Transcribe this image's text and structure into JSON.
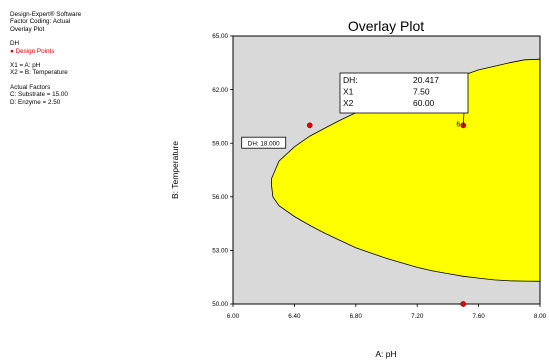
{
  "info": {
    "software": "Design-Expert® Software",
    "coding": "Factor Coding: Actual",
    "plot_name": "Overlay Plot",
    "response": "DH",
    "design_points": "Design Points",
    "x1_assign": "X1 = A: pH",
    "x2_assign": "X2 = B: Temperature",
    "actual_factors_header": "Actual Factors",
    "factor_c": "C: Substrate = 15.00",
    "factor_d": "D: Enzyme = 2.50"
  },
  "chart_data": {
    "type": "contour",
    "title": "Overlay Plot",
    "xlabel": "A: pH",
    "ylabel": "B: Temperature",
    "xlim": [
      6.0,
      8.0
    ],
    "ylim": [
      50.0,
      65.0
    ],
    "xticks": [
      "6.00",
      "6.40",
      "6.80",
      "7.20",
      "7.60",
      "8.00"
    ],
    "yticks": [
      "50.00",
      "53.00",
      "56.00",
      "59.00",
      "62.00",
      "65.00"
    ],
    "xtick_values": [
      6.0,
      6.4,
      6.8,
      7.2,
      7.6,
      8.0
    ],
    "ytick_values": [
      50.0,
      53.0,
      56.0,
      59.0,
      62.0,
      65.0
    ],
    "feasible_region": {
      "fill": "#ffff00",
      "outside_fill": "#d9d9d9",
      "boundary": [
        [
          8.0,
          63.7
        ],
        [
          7.9,
          63.67
        ],
        [
          7.8,
          63.5
        ],
        [
          7.7,
          63.3
        ],
        [
          7.6,
          63.1
        ],
        [
          7.5,
          62.8
        ],
        [
          7.4,
          62.55
        ],
        [
          7.3,
          62.3
        ],
        [
          7.2,
          62.0
        ],
        [
          7.1,
          61.7
        ],
        [
          7.0,
          61.4
        ],
        [
          6.9,
          61.05
        ],
        [
          6.8,
          60.7
        ],
        [
          6.7,
          60.3
        ],
        [
          6.6,
          59.85
        ],
        [
          6.5,
          59.4
        ],
        [
          6.4,
          58.8
        ],
        [
          6.3,
          58.0
        ],
        [
          6.25,
          57.0
        ],
        [
          6.25,
          56.7
        ],
        [
          6.26,
          56.0
        ],
        [
          6.3,
          55.5
        ],
        [
          6.4,
          54.9
        ],
        [
          6.5,
          54.4
        ],
        [
          6.6,
          53.95
        ],
        [
          6.7,
          53.55
        ],
        [
          6.8,
          53.15
        ],
        [
          6.9,
          52.85
        ],
        [
          7.0,
          52.55
        ],
        [
          7.1,
          52.3
        ],
        [
          7.2,
          52.05
        ],
        [
          7.3,
          51.85
        ],
        [
          7.4,
          51.7
        ],
        [
          7.5,
          51.55
        ],
        [
          7.6,
          51.45
        ],
        [
          7.7,
          51.35
        ],
        [
          7.8,
          51.3
        ],
        [
          7.9,
          51.28
        ],
        [
          8.0,
          51.27
        ]
      ]
    },
    "design_points": [
      {
        "x": 6.5,
        "y": 60.0,
        "label": ""
      },
      {
        "x": 7.5,
        "y": 60.0,
        "label": "6"
      },
      {
        "x": 7.5,
        "y": 50.0,
        "label": ""
      }
    ],
    "contour_label": {
      "text": "DH: 18.000",
      "x": 6.2,
      "y": 59.0
    },
    "flag": {
      "rows": [
        {
          "key": "DH:",
          "value": "20.417"
        },
        {
          "key": "X1",
          "value": "7.50"
        },
        {
          "key": "X2",
          "value": "60.00"
        }
      ],
      "anchor_x": 7.5,
      "anchor_y": 60.0
    }
  }
}
